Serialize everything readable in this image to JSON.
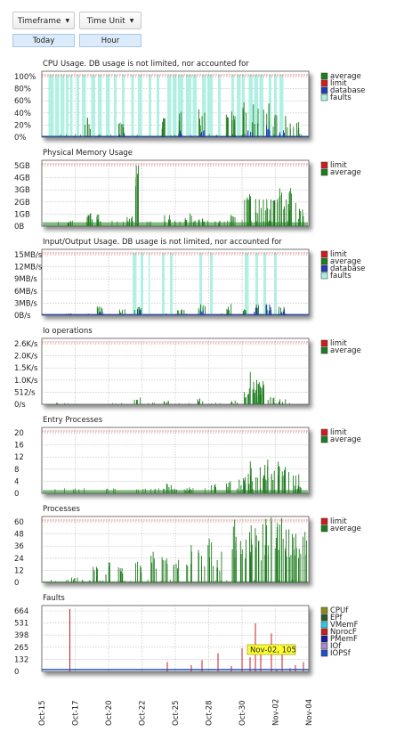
{
  "controls": {
    "timeframe_label": "Timeframe",
    "time_unit_label": "Time Unit",
    "timeframe_value": "Today",
    "time_unit_value": "Hour"
  },
  "colors": {
    "average": "#1e7d1e",
    "limit": "#d01c1c",
    "database": "#1f3fb4",
    "faults": "#a8f0e0",
    "CPUf": "#8c8c14",
    "EPf": "#2a5a2a",
    "VMemF": "#2fc8e6",
    "NprocF": "#c81e1e",
    "PMemF": "#1a1a9a",
    "IOf": "#a888d0",
    "IOPSf": "#1e4fc8"
  },
  "x_axis": {
    "ticks": [
      "Oct-15",
      "Oct-17",
      "Oct-20",
      "Oct-22",
      "Oct-25",
      "Oct-28",
      "Oct-30",
      "Nov-02",
      "Nov-04"
    ]
  },
  "chart_data": [
    {
      "type": "area",
      "title": "CPU Usage. DB usage is not limited, nor accounted for",
      "y_ticks": [
        "100%",
        "80%",
        "60%",
        "40%",
        "20%",
        "0%"
      ],
      "ylim": [
        0,
        100
      ],
      "legend": [
        "average",
        "limit",
        "database",
        "faults"
      ],
      "legend_position": "right",
      "grid": true,
      "limit_value": 100,
      "fault_bands": [
        [
          0.025,
          0.045
        ],
        [
          0.05,
          0.065
        ],
        [
          0.07,
          0.085
        ],
        [
          0.09,
          0.1
        ],
        [
          0.105,
          0.115
        ],
        [
          0.13,
          0.14
        ],
        [
          0.15,
          0.165
        ],
        [
          0.185,
          0.2
        ],
        [
          0.21,
          0.225
        ],
        [
          0.24,
          0.255
        ],
        [
          0.27,
          0.28
        ],
        [
          0.3,
          0.31
        ],
        [
          0.335,
          0.345
        ],
        [
          0.36,
          0.375
        ],
        [
          0.4,
          0.41
        ],
        [
          0.43,
          0.44
        ],
        [
          0.47,
          0.485
        ],
        [
          0.49,
          0.505
        ],
        [
          0.51,
          0.53
        ],
        [
          0.54,
          0.56
        ],
        [
          0.565,
          0.58
        ],
        [
          0.6,
          0.615
        ],
        [
          0.62,
          0.64
        ],
        [
          0.66,
          0.67
        ],
        [
          0.71,
          0.72
        ],
        [
          0.73,
          0.745
        ],
        [
          0.75,
          0.76
        ],
        [
          0.775,
          0.79
        ],
        [
          0.795,
          0.81
        ],
        [
          0.815,
          0.83
        ],
        [
          0.85,
          0.86
        ],
        [
          0.87,
          0.88
        ],
        [
          0.89,
          0.905
        ]
      ],
      "average_peaks": [
        [
          0.17,
          35
        ],
        [
          0.3,
          25
        ],
        [
          0.45,
          30
        ],
        [
          0.52,
          40
        ],
        [
          0.6,
          45
        ],
        [
          0.7,
          50
        ],
        [
          0.72,
          35
        ],
        [
          0.76,
          55
        ],
        [
          0.8,
          50
        ],
        [
          0.84,
          55
        ],
        [
          0.88,
          40
        ],
        [
          0.92,
          35
        ],
        [
          0.95,
          30
        ]
      ],
      "database_peaks": [
        [
          0.3,
          8
        ],
        [
          0.52,
          10
        ],
        [
          0.6,
          12
        ],
        [
          0.78,
          15
        ],
        [
          0.85,
          18
        ],
        [
          0.9,
          12
        ]
      ],
      "base_average": 2
    },
    {
      "type": "line",
      "title": "Physical Memory Usage",
      "y_ticks": [
        "5GB",
        "4GB",
        "3GB",
        "2GB",
        "1GB",
        "0B"
      ],
      "ylim": [
        0,
        5
      ],
      "legend": [
        "limit",
        "average"
      ],
      "legend_position": "right",
      "grid": true,
      "limit_value": 5,
      "average_peaks": [
        [
          0.1,
          0.4
        ],
        [
          0.17,
          1.1
        ],
        [
          0.2,
          0.9
        ],
        [
          0.33,
          0.8
        ],
        [
          0.36,
          5.0
        ],
        [
          0.47,
          0.9
        ],
        [
          0.55,
          1.0
        ],
        [
          0.6,
          0.6
        ],
        [
          0.66,
          0.5
        ],
        [
          0.72,
          0.9
        ],
        [
          0.77,
          2.3
        ],
        [
          0.79,
          2.5
        ],
        [
          0.82,
          2.1
        ],
        [
          0.85,
          3.1
        ],
        [
          0.87,
          2.4
        ],
        [
          0.9,
          3.3
        ],
        [
          0.92,
          3.5
        ],
        [
          0.94,
          2.9
        ],
        [
          0.97,
          1.5
        ]
      ],
      "base_average": 0.3
    },
    {
      "type": "area",
      "title": "Input/Output Usage. DB usage is not limited, nor accounted for",
      "y_ticks": [
        "15MB/s",
        "12MB/s",
        "9MB/s",
        "6MB/s",
        "3MB/s",
        "0B/s"
      ],
      "ylim": [
        0,
        15
      ],
      "legend": [
        "limit",
        "average",
        "database",
        "faults"
      ],
      "legend_position": "right",
      "grid": true,
      "limit_value": 15,
      "fault_bands": [
        [
          0.34,
          0.355
        ],
        [
          0.37,
          0.38
        ],
        [
          0.4,
          0.405
        ],
        [
          0.45,
          0.46
        ],
        [
          0.48,
          0.49
        ],
        [
          0.59,
          0.6
        ],
        [
          0.63,
          0.64
        ],
        [
          0.76,
          0.775
        ],
        [
          0.8,
          0.81
        ],
        [
          0.83,
          0.84
        ],
        [
          0.87,
          0.88
        ]
      ],
      "average_peaks": [
        [
          0.1,
          0.5
        ],
        [
          0.22,
          2.0
        ],
        [
          0.3,
          1.5
        ],
        [
          0.36,
          2.2
        ],
        [
          0.52,
          1.5
        ],
        [
          0.6,
          2.5
        ],
        [
          0.7,
          3.0
        ],
        [
          0.76,
          1.8
        ],
        [
          0.8,
          2.5
        ],
        [
          0.85,
          3.2
        ],
        [
          0.9,
          2.0
        ]
      ],
      "database_peaks": [
        [
          0.22,
          1.0
        ],
        [
          0.36,
          1.5
        ],
        [
          0.6,
          1.2
        ],
        [
          0.8,
          2.0
        ],
        [
          0.85,
          2.5
        ],
        [
          0.9,
          1.5
        ]
      ],
      "base_average": 0
    },
    {
      "type": "line",
      "title": "Io operations",
      "y_ticks": [
        "2.6K/s",
        "2.0K/s",
        "1.5K/s",
        "1.0K/s",
        "512/s",
        "0/s"
      ],
      "ylim": [
        0,
        2600
      ],
      "legend": [
        "limit",
        "average"
      ],
      "legend_position": "right",
      "grid": true,
      "limit_value": 2600,
      "average_peaks": [
        [
          0.36,
          300
        ],
        [
          0.47,
          200
        ],
        [
          0.59,
          250
        ],
        [
          0.72,
          200
        ],
        [
          0.77,
          500
        ],
        [
          0.79,
          1300
        ],
        [
          0.8,
          1000
        ],
        [
          0.81,
          900
        ],
        [
          0.82,
          1100
        ],
        [
          0.83,
          900
        ],
        [
          0.86,
          300
        ],
        [
          0.9,
          250
        ]
      ],
      "base_average": 0
    },
    {
      "type": "line",
      "title": "Entry Processes",
      "y_ticks": [
        "20",
        "16",
        "12",
        "8",
        "4",
        "0"
      ],
      "ylim": [
        0,
        20
      ],
      "legend": [
        "limit",
        "average"
      ],
      "legend_position": "right",
      "grid": true,
      "limit_value": 20,
      "average_peaks": [
        [
          0.48,
          3
        ],
        [
          0.55,
          2
        ],
        [
          0.64,
          3
        ],
        [
          0.7,
          4
        ],
        [
          0.75,
          5
        ],
        [
          0.77,
          8
        ],
        [
          0.79,
          10
        ],
        [
          0.82,
          9
        ],
        [
          0.84,
          11
        ],
        [
          0.86,
          7
        ],
        [
          0.88,
          10
        ],
        [
          0.9,
          12
        ],
        [
          0.92,
          9
        ],
        [
          0.95,
          6
        ],
        [
          0.97,
          2
        ]
      ],
      "base_average": 1
    },
    {
      "type": "line",
      "title": "Processes",
      "y_ticks": [
        "60",
        "48",
        "36",
        "24",
        "12",
        "0"
      ],
      "ylim": [
        0,
        60
      ],
      "legend": [
        "limit",
        "average"
      ],
      "legend_position": "right",
      "grid": true,
      "limit_value": 60,
      "average_peaks": [
        [
          0.12,
          5
        ],
        [
          0.2,
          15
        ],
        [
          0.25,
          20
        ],
        [
          0.3,
          18
        ],
        [
          0.36,
          20
        ],
        [
          0.42,
          30
        ],
        [
          0.46,
          25
        ],
        [
          0.5,
          22
        ],
        [
          0.55,
          35
        ],
        [
          0.6,
          40
        ],
        [
          0.63,
          42
        ],
        [
          0.66,
          28
        ],
        [
          0.72,
          60
        ],
        [
          0.74,
          45
        ],
        [
          0.77,
          60
        ],
        [
          0.79,
          60
        ],
        [
          0.81,
          50
        ],
        [
          0.83,
          60
        ],
        [
          0.85,
          60
        ],
        [
          0.87,
          55
        ],
        [
          0.9,
          60
        ],
        [
          0.92,
          60
        ],
        [
          0.94,
          50
        ],
        [
          0.96,
          60
        ],
        [
          0.98,
          55
        ]
      ],
      "base_average": 1
    },
    {
      "type": "line",
      "title": "Faults",
      "y_ticks": [
        "664",
        "531",
        "398",
        "265",
        "132",
        "0"
      ],
      "ylim": [
        0,
        664
      ],
      "legend": [
        "CPUf",
        "EPf",
        "VMemF",
        "NprocF",
        "PMemF",
        "IOf",
        "IOPSf"
      ],
      "legend_position": "right",
      "grid": true,
      "nprocf_peaks": [
        [
          0.105,
          664
        ],
        [
          0.47,
          130
        ],
        [
          0.56,
          100
        ],
        [
          0.6,
          150
        ],
        [
          0.66,
          220
        ],
        [
          0.71,
          90
        ],
        [
          0.75,
          270
        ],
        [
          0.78,
          180
        ],
        [
          0.8,
          520
        ],
        [
          0.82,
          300
        ],
        [
          0.86,
          420
        ],
        [
          0.88,
          50
        ],
        [
          0.9,
          210
        ],
        [
          0.93,
          70
        ],
        [
          0.95,
          100
        ],
        [
          0.98,
          130
        ]
      ],
      "iopsf_base": 20,
      "tooltip": "Nov-02, 105"
    }
  ]
}
